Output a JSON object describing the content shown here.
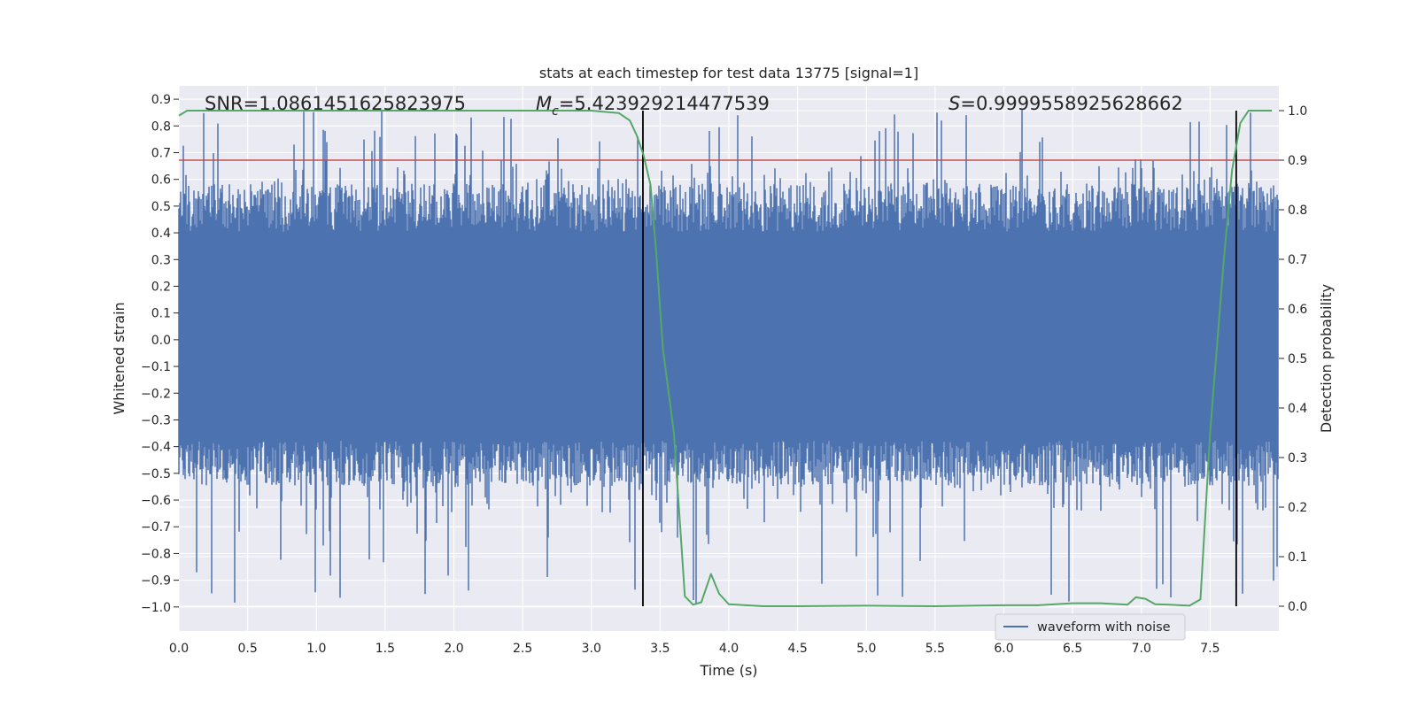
{
  "chart_data": {
    "type": "line",
    "title": "stats at each timestep for test data 13775 [signal=1]",
    "xlabel": "Time (s)",
    "ylabel": "Whitened strain",
    "y2label": "Detection probability",
    "xlim": [
      0.0,
      8.0
    ],
    "ylim": [
      -1.09,
      0.95
    ],
    "y2lim": [
      -0.05,
      1.05
    ],
    "xticks": [
      "0.0",
      "0.5",
      "1.0",
      "1.5",
      "2.0",
      "2.5",
      "3.0",
      "3.5",
      "4.0",
      "4.5",
      "5.0",
      "5.5",
      "6.0",
      "6.5",
      "7.0",
      "7.5"
    ],
    "yticks": [
      "0.9",
      "0.8",
      "0.7",
      "0.6",
      "0.5",
      "0.4",
      "0.3",
      "0.2",
      "0.1",
      "0.0",
      "−0.1",
      "−0.2",
      "−0.3",
      "−0.4",
      "−0.5",
      "−0.6",
      "−0.7",
      "−0.8",
      "−0.9",
      "−1.0"
    ],
    "y2ticks": [
      "1.0",
      "0.9",
      "0.8",
      "0.7",
      "0.6",
      "0.5",
      "0.4",
      "0.3",
      "0.2",
      "0.1",
      "0.0"
    ],
    "threshold": 0.9,
    "boundaries": [
      3.375,
      7.69
    ],
    "annotations": {
      "snr": "SNR=1.0861451625823975",
      "mc_symbol": "M",
      "mc_sub": "c",
      "mc_value": "=5.423929214477539",
      "s_symbol": "S",
      "s_value": "=0.9999558925628662"
    },
    "legend": {
      "label": "waveform with noise",
      "placement": "lower-right"
    },
    "series": [
      {
        "name": "waveform with noise",
        "axis": "left",
        "color": "#4c72b0",
        "kind": "noise",
        "t_range": [
          0.0,
          8.0
        ],
        "typical_amplitude": [
          -0.42,
          0.45
        ],
        "peak_max": 0.86,
        "peak_min": -0.99
      },
      {
        "name": "detection probability",
        "axis": "right",
        "color": "#55a868",
        "x": [
          0.0,
          0.06,
          0.5,
          1.0,
          1.5,
          2.0,
          2.5,
          3.0,
          3.2,
          3.28,
          3.33,
          3.38,
          3.43,
          3.47,
          3.52,
          3.6,
          3.68,
          3.74,
          3.8,
          3.87,
          3.93,
          4.0,
          4.25,
          4.5,
          5.0,
          5.5,
          6.0,
          6.25,
          6.5,
          6.7,
          6.9,
          6.96,
          7.03,
          7.1,
          7.2,
          7.35,
          7.43,
          7.5,
          7.6,
          7.66,
          7.72,
          7.78,
          7.95
        ],
        "y": [
          0.99,
          1.0,
          1.0,
          1.0,
          1.0,
          1.0,
          1.0,
          1.0,
          0.995,
          0.98,
          0.95,
          0.91,
          0.85,
          0.72,
          0.52,
          0.35,
          0.02,
          0.003,
          0.008,
          0.065,
          0.025,
          0.004,
          0.0,
          0.0,
          0.001,
          0.0,
          0.002,
          0.002,
          0.006,
          0.006,
          0.003,
          0.018,
          0.015,
          0.004,
          0.003,
          0.001,
          0.014,
          0.35,
          0.7,
          0.88,
          0.975,
          1.0,
          1.0
        ]
      }
    ]
  }
}
